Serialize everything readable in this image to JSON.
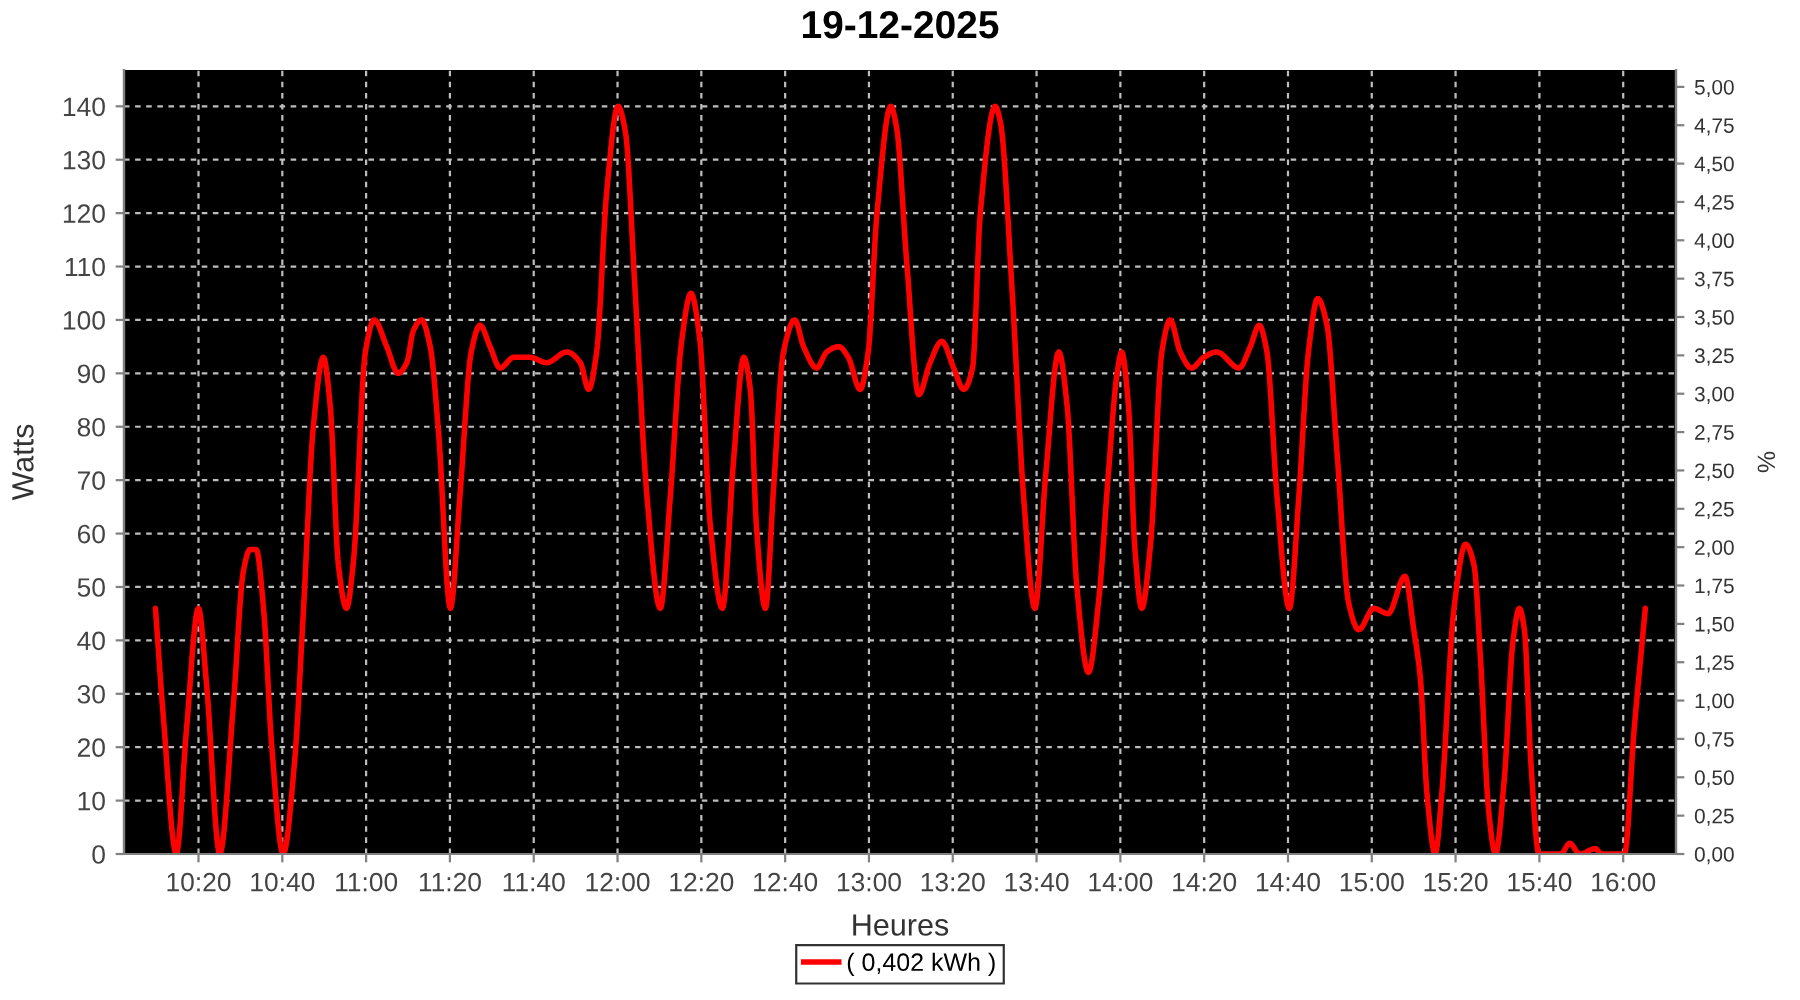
{
  "chart_data": {
    "type": "line",
    "title": "19-12-2025",
    "xlabel": "Heures",
    "ylabel": "Watts",
    "y2label": "%",
    "series": [
      {
        "name": "( 0,402 kWh )",
        "color": "#ff0000",
        "x": [
          10.162,
          10.193,
          10.245,
          10.285,
          10.333,
          10.365,
          10.418,
          10.472,
          10.512,
          10.538,
          10.563,
          10.592,
          10.625,
          10.67,
          10.715,
          10.75,
          10.79,
          10.83,
          10.857,
          10.89,
          10.922,
          10.95,
          10.997,
          11.032,
          11.082,
          11.127,
          11.162,
          11.188,
          11.22,
          11.255,
          11.288,
          11.335,
          11.373,
          11.418,
          11.453,
          11.493,
          11.533,
          11.587,
          11.652,
          11.718,
          11.798,
          11.852,
          11.885,
          11.917,
          11.957,
          12.002,
          12.032,
          12.068,
          12.117,
          12.17,
          12.21,
          12.255,
          12.292,
          12.328,
          12.368,
          12.417,
          12.462,
          12.502,
          12.528,
          12.553,
          12.588,
          12.62,
          12.66,
          12.705,
          12.74,
          12.792,
          12.832,
          12.88,
          12.918,
          12.965,
          12.997,
          13.032,
          13.087,
          13.11,
          13.15,
          13.198,
          13.243,
          13.29,
          13.337,
          13.377,
          13.412,
          13.443,
          13.502,
          13.523,
          13.57,
          13.615,
          13.66,
          13.703,
          13.755,
          13.788,
          13.827,
          13.873,
          13.915,
          13.952,
          13.987,
          14.005,
          14.032,
          14.058,
          14.085,
          14.12,
          14.165,
          14.198,
          14.238,
          14.283,
          14.332,
          14.383,
          14.472,
          14.517,
          14.552,
          14.583,
          14.623,
          14.672,
          14.71,
          14.748,
          14.785,
          14.822,
          14.862,
          14.908,
          14.948,
          15.008,
          15.065,
          15.132,
          15.167,
          15.193,
          15.22,
          15.252,
          15.278,
          15.327,
          15.373,
          15.407,
          15.433,
          15.465,
          15.492,
          15.527,
          15.562,
          15.587,
          15.607,
          15.633,
          15.665,
          15.752,
          15.787,
          15.827,
          15.89,
          15.912,
          16.005,
          16.043,
          16.088
        ],
        "values": [
          46,
          26,
          0,
          23,
          46,
          32,
          0,
          28,
          53,
          57,
          57,
          46,
          20,
          0,
          17,
          45,
          80,
          93,
          84,
          54,
          46,
          55,
          94,
          100,
          95,
          90,
          92,
          98,
          100,
          95,
          79,
          46,
          67,
          94,
          99,
          95,
          91,
          93,
          93,
          92,
          94,
          92,
          87,
          94,
          124,
          140,
          135,
          107,
          67,
          46,
          67,
          96,
          105,
          96,
          62,
          46,
          74,
          93,
          87,
          61,
          46,
          68,
          94,
          100,
          95,
          91,
          94,
          95,
          93,
          87,
          94,
          120,
          140,
          136,
          111,
          86,
          92,
          96,
          91,
          87,
          91,
          120,
          140,
          137,
          105,
          67,
          46,
          71,
          94,
          84,
          50,
          34,
          48,
          71,
          90,
          94,
          84,
          57,
          46,
          58,
          94,
          100,
          94,
          91,
          93,
          94,
          91,
          95,
          99,
          94,
          67,
          46,
          67,
          94,
          104,
          99,
          75,
          47,
          42,
          46,
          45,
          52,
          42,
          33,
          11,
          0,
          11,
          46,
          58,
          54,
          36,
          8,
          0,
          14,
          40,
          46,
          42,
          17,
          0,
          0,
          2,
          0,
          1,
          0,
          0,
          23,
          46
        ]
      }
    ],
    "xlim": [
      10.037,
      16.21
    ],
    "xticks": [
      {
        "value": 10.3333,
        "label": "10:20"
      },
      {
        "value": 10.6667,
        "label": "10:40"
      },
      {
        "value": 11,
        "label": "11:00"
      },
      {
        "value": 11.3333,
        "label": "11:20"
      },
      {
        "value": 11.6667,
        "label": "11:40"
      },
      {
        "value": 12,
        "label": "12:00"
      },
      {
        "value": 12.3333,
        "label": "12:20"
      },
      {
        "value": 12.6667,
        "label": "12:40"
      },
      {
        "value": 13,
        "label": "13:00"
      },
      {
        "value": 13.3333,
        "label": "13:20"
      },
      {
        "value": 13.6667,
        "label": "13:40"
      },
      {
        "value": 14,
        "label": "14:00"
      },
      {
        "value": 14.3333,
        "label": "14:20"
      },
      {
        "value": 14.6667,
        "label": "14:40"
      },
      {
        "value": 15,
        "label": "15:00"
      },
      {
        "value": 15.3333,
        "label": "15:20"
      },
      {
        "value": 15.6667,
        "label": "15:40"
      },
      {
        "value": 16,
        "label": "16:00"
      }
    ],
    "ylim": [
      0,
      146.8
    ],
    "yticks": [
      0,
      10,
      20,
      30,
      40,
      50,
      60,
      70,
      80,
      90,
      100,
      110,
      120,
      130,
      140
    ],
    "y2lim": [
      0,
      5.11
    ],
    "y2ticks": [
      {
        "value": 0,
        "label": "0,00"
      },
      {
        "value": 0.25,
        "label": "0,25"
      },
      {
        "value": 0.5,
        "label": "0,50"
      },
      {
        "value": 0.75,
        "label": "0,75"
      },
      {
        "value": 1,
        "label": "1,00"
      },
      {
        "value": 1.25,
        "label": "1,25"
      },
      {
        "value": 1.5,
        "label": "1,50"
      },
      {
        "value": 1.75,
        "label": "1,75"
      },
      {
        "value": 2,
        "label": "2,00"
      },
      {
        "value": 2.25,
        "label": "2,25"
      },
      {
        "value": 2.5,
        "label": "2,50"
      },
      {
        "value": 2.75,
        "label": "2,75"
      },
      {
        "value": 3,
        "label": "3,00"
      },
      {
        "value": 3.25,
        "label": "3,25"
      },
      {
        "value": 3.5,
        "label": "3,50"
      },
      {
        "value": 3.75,
        "label": "3,75"
      },
      {
        "value": 4,
        "label": "4,00"
      },
      {
        "value": 4.25,
        "label": "4,25"
      },
      {
        "value": 4.5,
        "label": "4,50"
      },
      {
        "value": 4.75,
        "label": "4,75"
      },
      {
        "value": 5,
        "label": "5,00"
      }
    ],
    "grid": true,
    "legend": "bottom",
    "line_style": "solid"
  }
}
